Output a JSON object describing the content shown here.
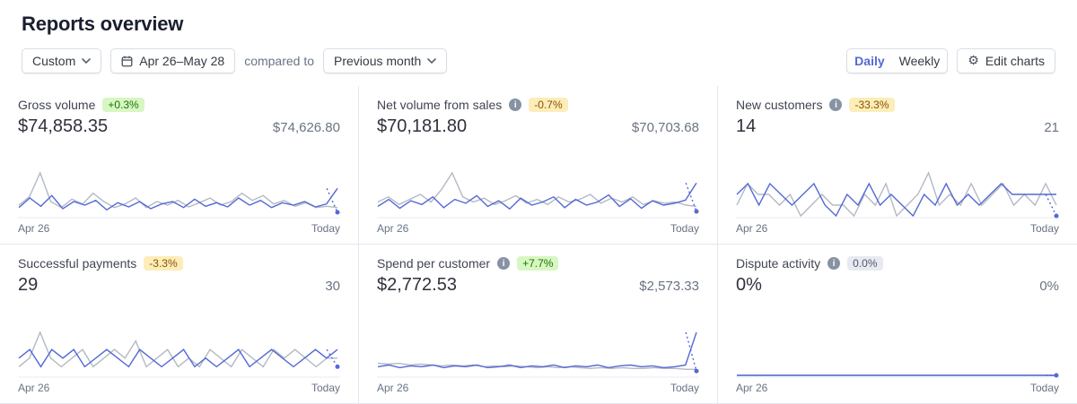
{
  "page": {
    "title": "Reports overview"
  },
  "toolbar": {
    "range_type": "Custom",
    "date_range": "Apr 26–May 28",
    "compared_to_label": "compared to",
    "comparison": "Previous month",
    "daily_label": "Daily",
    "weekly_label": "Weekly",
    "active_granularity": "Daily",
    "edit_charts_label": "Edit charts"
  },
  "icons": {
    "info_glyph": "i",
    "gear_glyph": "⚙",
    "calendar": "calendar-icon",
    "chevron": "chevron-down-icon"
  },
  "colors": {
    "accent": "#5469d4",
    "previous": "#b3b9c5",
    "baseline": "#e8ebf1",
    "badge_green_bg": "#d7f7c2",
    "badge_green_text": "#217005",
    "badge_amber_bg": "#fcedb9",
    "badge_amber_text": "#8a5300",
    "badge_gray_bg": "#e7eaf0",
    "badge_gray_text": "#545969"
  },
  "axis": {
    "start": "Apr 26",
    "end": "Today"
  },
  "cards": [
    {
      "label": "Gross volume",
      "info": false,
      "badge": "+0.3%",
      "badge_type": "green",
      "value": "$74,858.35",
      "compare": "$74,626.80",
      "chart": {
        "type": "line",
        "x_start": "Apr 26",
        "x_end": "Today",
        "current": [
          14,
          30,
          16,
          34,
          12,
          24,
          18,
          26,
          10,
          22,
          15,
          24,
          12,
          20,
          24,
          14,
          28,
          16,
          22,
          15,
          30,
          18,
          26,
          14,
          22,
          18,
          24,
          15,
          20,
          46,
          6
        ],
        "previous": [
          18,
          32,
          72,
          24,
          14,
          28,
          20,
          38,
          24,
          14,
          20,
          30,
          14,
          24,
          18,
          26,
          15,
          22,
          30,
          18,
          24,
          38,
          26,
          34,
          20,
          26,
          16,
          22,
          14,
          16,
          14
        ]
      }
    },
    {
      "label": "Net volume from sales",
      "info": true,
      "badge": "-0.7%",
      "badge_type": "amber",
      "value": "$70,181.80",
      "compare": "$70,703.68",
      "chart": {
        "type": "line",
        "x_start": "Apr 26",
        "x_end": "Today",
        "current": [
          15,
          26,
          12,
          24,
          18,
          30,
          13,
          26,
          20,
          32,
          15,
          24,
          11,
          28,
          17,
          22,
          30,
          13,
          26,
          17,
          22,
          33,
          15,
          27,
          12,
          24,
          17,
          20,
          25,
          52,
          7
        ],
        "previous": [
          22,
          30,
          18,
          26,
          34,
          22,
          42,
          68,
          30,
          22,
          28,
          18,
          24,
          32,
          20,
          26,
          18,
          30,
          22,
          26,
          34,
          20,
          28,
          22,
          30,
          18,
          24,
          20,
          22,
          17,
          15
        ]
      }
    },
    {
      "label": "New customers",
      "info": true,
      "badge": "-33.3%",
      "badge_type": "amber",
      "value": "14",
      "compare": "21",
      "chart": {
        "type": "line",
        "x_start": "Apr 26",
        "x_end": "Today",
        "current": [
          2,
          3,
          1,
          3,
          2,
          1,
          2,
          3,
          1,
          0,
          2,
          1,
          3,
          1,
          2,
          1,
          0,
          2,
          1,
          3,
          1,
          2,
          1,
          2,
          3,
          2,
          2,
          2,
          2,
          2,
          0
        ],
        "previous": [
          1,
          3,
          2,
          2,
          1,
          2,
          0,
          1,
          2,
          1,
          1,
          0,
          2,
          1,
          3,
          0,
          1,
          2,
          4,
          1,
          2,
          1,
          3,
          1,
          2,
          3,
          1,
          2,
          1,
          3,
          1
        ]
      }
    },
    {
      "label": "Successful payments",
      "info": false,
      "badge": "-3.3%",
      "badge_type": "amber",
      "value": "29",
      "compare": "30",
      "chart": {
        "type": "line",
        "x_start": "Apr 26",
        "x_end": "Today",
        "current": [
          2,
          3,
          1,
          3,
          2,
          3,
          1,
          2,
          3,
          2,
          1,
          3,
          2,
          1,
          2,
          3,
          1,
          2,
          1,
          2,
          3,
          1,
          2,
          3,
          2,
          1,
          2,
          3,
          2,
          3,
          1
        ],
        "previous": [
          1,
          2,
          5,
          2,
          1,
          2,
          3,
          1,
          2,
          3,
          2,
          4,
          1,
          2,
          3,
          1,
          2,
          1,
          3,
          2,
          1,
          3,
          2,
          1,
          3,
          2,
          3,
          2,
          1,
          2,
          2
        ]
      }
    },
    {
      "label": "Spend per customer",
      "info": true,
      "badge": "+7.7%",
      "badge_type": "green",
      "value": "$2,772.53",
      "compare": "$2,573.33",
      "chart": {
        "type": "line",
        "x_start": "Apr 26",
        "x_end": "Today",
        "current": [
          10,
          12,
          9,
          11,
          10,
          12,
          9,
          11,
          10,
          12,
          9,
          10,
          12,
          9,
          11,
          10,
          12,
          9,
          11,
          10,
          12,
          9,
          11,
          12,
          10,
          11,
          9,
          10,
          12,
          50,
          5
        ],
        "previous": [
          14,
          13,
          14,
          12,
          13,
          12,
          11,
          12,
          11,
          12,
          10,
          11,
          10,
          11,
          10,
          9,
          10,
          9,
          10,
          9,
          8,
          9,
          8,
          9,
          8,
          8,
          9,
          8,
          8,
          7,
          7
        ]
      }
    },
    {
      "label": "Dispute activity",
      "info": true,
      "badge": "0.0%",
      "badge_type": "gray",
      "value": "0%",
      "compare": "0%",
      "chart": {
        "type": "line",
        "x_start": "Apr 26",
        "x_end": "Today",
        "current": [
          0,
          0,
          0,
          0,
          0,
          0,
          0,
          0,
          0,
          0,
          0,
          0,
          0,
          0,
          0,
          0,
          0,
          0,
          0,
          0,
          0,
          0,
          0,
          0,
          0,
          0,
          0,
          0,
          0,
          0,
          0
        ],
        "previous": [
          0,
          0,
          0,
          0,
          0,
          0,
          0,
          0,
          0,
          0,
          0,
          0,
          0,
          0,
          0,
          0,
          0,
          0,
          0,
          0,
          0,
          0,
          0,
          0,
          0,
          0,
          0,
          0,
          0,
          0,
          0
        ]
      }
    }
  ]
}
